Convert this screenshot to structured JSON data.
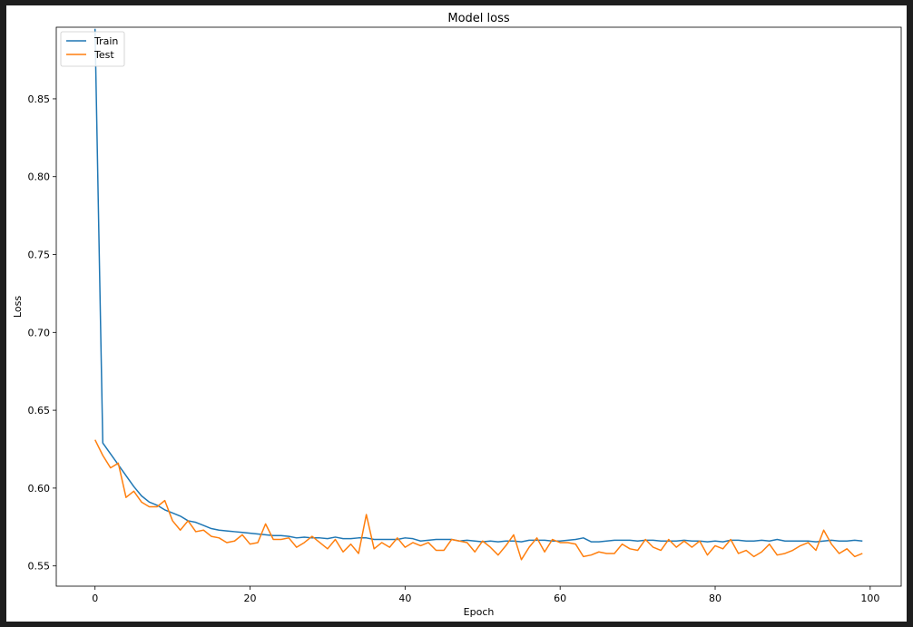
{
  "chart_data": {
    "type": "line",
    "title": "Model loss",
    "xlabel": "Epoch",
    "ylabel": "Loss",
    "xlim": [
      -5,
      104
    ],
    "ylim": [
      0.537,
      0.896
    ],
    "xticks": [
      0,
      20,
      40,
      60,
      80,
      100
    ],
    "yticks": [
      0.55,
      0.6,
      0.65,
      0.7,
      0.75,
      0.8,
      0.85
    ],
    "legend_position": "upper-left",
    "grid": false,
    "x": [
      0,
      1,
      2,
      3,
      4,
      5,
      6,
      7,
      8,
      9,
      10,
      11,
      12,
      13,
      14,
      15,
      16,
      17,
      18,
      19,
      20,
      21,
      22,
      23,
      24,
      25,
      26,
      27,
      28,
      29,
      30,
      31,
      32,
      33,
      34,
      35,
      36,
      37,
      38,
      39,
      40,
      41,
      42,
      43,
      44,
      45,
      46,
      47,
      48,
      49,
      50,
      51,
      52,
      53,
      54,
      55,
      56,
      57,
      58,
      59,
      60,
      61,
      62,
      63,
      64,
      65,
      66,
      67,
      68,
      69,
      70,
      71,
      72,
      73,
      74,
      75,
      76,
      77,
      78,
      79,
      80,
      81,
      82,
      83,
      84,
      85,
      86,
      87,
      88,
      89,
      90,
      91,
      92,
      93,
      94,
      95,
      96,
      97,
      98,
      99
    ],
    "series": [
      {
        "name": "Train",
        "color": "#1f77b4",
        "values": [
          0.895,
          0.629,
          0.622,
          0.615,
          0.608,
          0.601,
          0.595,
          0.591,
          0.589,
          0.586,
          0.584,
          0.582,
          0.579,
          0.578,
          0.576,
          0.574,
          0.573,
          0.5725,
          0.572,
          0.5715,
          0.571,
          0.5705,
          0.57,
          0.5695,
          0.5695,
          0.569,
          0.568,
          0.5685,
          0.568,
          0.568,
          0.5675,
          0.5685,
          0.5675,
          0.5675,
          0.568,
          0.568,
          0.567,
          0.567,
          0.567,
          0.567,
          0.568,
          0.5675,
          0.566,
          0.5665,
          0.567,
          0.567,
          0.567,
          0.566,
          0.5665,
          0.566,
          0.5655,
          0.566,
          0.5655,
          0.566,
          0.566,
          0.5655,
          0.5665,
          0.5665,
          0.5665,
          0.566,
          0.566,
          0.5665,
          0.567,
          0.568,
          0.5655,
          0.5655,
          0.566,
          0.5665,
          0.5665,
          0.5665,
          0.566,
          0.5665,
          0.5665,
          0.566,
          0.566,
          0.566,
          0.5665,
          0.566,
          0.566,
          0.5655,
          0.566,
          0.5655,
          0.5665,
          0.5665,
          0.566,
          0.566,
          0.5665,
          0.566,
          0.567,
          0.566,
          0.566,
          0.566,
          0.566,
          0.5655,
          0.566,
          0.5665,
          0.566,
          0.566,
          0.5665,
          0.566
        ]
      },
      {
        "name": "Test",
        "color": "#ff7f0e",
        "values": [
          0.631,
          0.621,
          0.613,
          0.616,
          0.594,
          0.598,
          0.591,
          0.588,
          0.588,
          0.592,
          0.579,
          0.573,
          0.579,
          0.572,
          0.573,
          0.569,
          0.568,
          0.565,
          0.566,
          0.57,
          0.564,
          0.565,
          0.577,
          0.567,
          0.567,
          0.568,
          0.562,
          0.565,
          0.569,
          0.565,
          0.561,
          0.567,
          0.559,
          0.564,
          0.558,
          0.583,
          0.561,
          0.565,
          0.562,
          0.568,
          0.562,
          0.565,
          0.563,
          0.565,
          0.56,
          0.56,
          0.567,
          0.566,
          0.565,
          0.559,
          0.566,
          0.562,
          0.557,
          0.563,
          0.57,
          0.554,
          0.562,
          0.568,
          0.559,
          0.567,
          0.565,
          0.565,
          0.564,
          0.556,
          0.557,
          0.559,
          0.558,
          0.558,
          0.564,
          0.561,
          0.56,
          0.567,
          0.562,
          0.56,
          0.567,
          0.562,
          0.566,
          0.562,
          0.566,
          0.557,
          0.563,
          0.561,
          0.567,
          0.558,
          0.56,
          0.556,
          0.559,
          0.564,
          0.557,
          0.558,
          0.56,
          0.563,
          0.565,
          0.56,
          0.573,
          0.564,
          0.558,
          0.561,
          0.556,
          0.558
        ]
      }
    ]
  }
}
